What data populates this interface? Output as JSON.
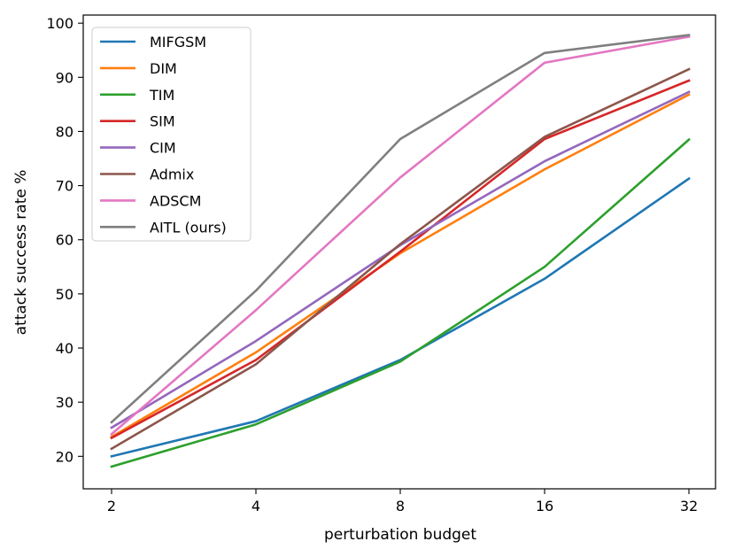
{
  "chart_data": {
    "type": "line",
    "title": "",
    "xlabel": "perturbation budget",
    "ylabel": "attack success rate %",
    "x": [
      "2",
      "4",
      "8",
      "16",
      "32"
    ],
    "yticks": [
      20,
      30,
      40,
      50,
      60,
      70,
      80,
      90,
      100
    ],
    "ylim": [
      14,
      101.5
    ],
    "legend_position": "top-left",
    "series": [
      {
        "name": "MIFGSM",
        "color": "#1f77b4",
        "values": [
          20.0,
          26.5,
          37.8,
          52.8,
          71.3
        ]
      },
      {
        "name": "DIM",
        "color": "#ff7f0e",
        "values": [
          23.6,
          39.2,
          57.5,
          73.0,
          86.8
        ]
      },
      {
        "name": "TIM",
        "color": "#2ca02c",
        "values": [
          18.1,
          25.9,
          37.5,
          55.0,
          78.5
        ]
      },
      {
        "name": "SIM",
        "color": "#d62728",
        "values": [
          23.4,
          37.8,
          57.8,
          78.6,
          89.4
        ]
      },
      {
        "name": "CIM",
        "color": "#9467bd",
        "values": [
          25.3,
          41.3,
          59.0,
          74.5,
          87.3
        ]
      },
      {
        "name": "Admix",
        "color": "#8c564b",
        "values": [
          21.4,
          37.0,
          59.2,
          79.0,
          91.5
        ]
      },
      {
        "name": "ADSCM",
        "color": "#e377c2",
        "values": [
          24.1,
          47.0,
          71.5,
          92.7,
          97.5
        ]
      },
      {
        "name": "AITL (ours)",
        "color": "#7f7f7f",
        "values": [
          26.3,
          50.6,
          78.6,
          94.5,
          97.8
        ]
      }
    ]
  }
}
